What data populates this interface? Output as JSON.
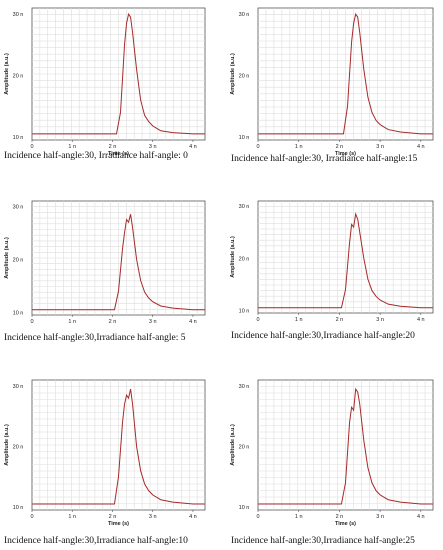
{
  "chart_data": [
    {
      "type": "line",
      "caption": "Incidence half-angle:30, Irradiance half-angle: 0",
      "xlabel": "Time (s)",
      "ylabel": "Amplitude (a.u.)",
      "x_ticks": [
        "0",
        "1 n",
        "2 n",
        "3 n",
        "4 n"
      ],
      "y_ticks": [
        "10 n",
        "20 n",
        "30 n"
      ],
      "xlim": [
        0,
        4.3
      ],
      "ylim": [
        9.5,
        31
      ],
      "series": [
        {
          "color": "#a52a2a",
          "x": [
            0,
            2.1,
            2.2,
            2.3,
            2.35,
            2.4,
            2.45,
            2.5,
            2.6,
            2.7,
            2.8,
            2.9,
            3.0,
            3.2,
            3.5,
            4.0,
            4.3
          ],
          "y": [
            10.5,
            10.5,
            14,
            25,
            28.5,
            30,
            29.5,
            27,
            21,
            16,
            13.5,
            12.5,
            11.8,
            11,
            10.7,
            10.5,
            10.5
          ]
        }
      ]
    },
    {
      "type": "line",
      "caption": "Incidence half-angle:30, Irradiance half-angle:15",
      "xlabel": "Time (s)",
      "ylabel": "Amplitude (a.u.)",
      "x_ticks": [
        "0",
        "1 n",
        "2 n",
        "3 n",
        "4 n"
      ],
      "y_ticks": [
        "10 n",
        "20 n",
        "30 n"
      ],
      "xlim": [
        0,
        4.3
      ],
      "ylim": [
        9.5,
        31
      ],
      "series": [
        {
          "color": "#a52a2a",
          "x": [
            0,
            2.1,
            2.2,
            2.3,
            2.35,
            2.4,
            2.45,
            2.5,
            2.6,
            2.7,
            2.8,
            2.9,
            3.0,
            3.2,
            3.5,
            4.0,
            4.3
          ],
          "y": [
            10.5,
            10.5,
            15,
            25.5,
            28.5,
            30,
            29.5,
            27,
            21,
            16.5,
            14,
            12.7,
            12,
            11.2,
            10.8,
            10.5,
            10.5
          ]
        }
      ]
    },
    {
      "type": "line",
      "caption": "Incidence half-angle:30,Irradiance half-angle: 5",
      "xlabel": "",
      "ylabel": "Amplitude (a.u.)",
      "x_ticks": [
        "0",
        "1 n",
        "2 n",
        "3 n",
        "4 n"
      ],
      "y_ticks": [
        "10 n",
        "20 n",
        "30 n"
      ],
      "xlim": [
        0,
        4.3
      ],
      "ylim": [
        9.5,
        31
      ],
      "series": [
        {
          "color": "#a52a2a",
          "x": [
            0,
            2.05,
            2.15,
            2.25,
            2.3,
            2.35,
            2.4,
            2.45,
            2.5,
            2.55,
            2.6,
            2.7,
            2.8,
            2.9,
            3.0,
            3.2,
            3.5,
            4.0,
            4.3
          ],
          "y": [
            10.5,
            10.5,
            14,
            22,
            25,
            27.5,
            27,
            28.5,
            26,
            23,
            20,
            16,
            13.8,
            12.7,
            12,
            11.2,
            10.8,
            10.5,
            10.5
          ]
        }
      ]
    },
    {
      "type": "line",
      "caption": "Incidence half-angle:30,Irradiance half-angle:20",
      "xlabel": "",
      "ylabel": "Amplitude (a.u.)",
      "x_ticks": [
        "0",
        "1 n",
        "2 n",
        "3 n",
        "4 n"
      ],
      "y_ticks": [
        "10 n",
        "20 n",
        "30 n"
      ],
      "xlim": [
        0,
        4.3
      ],
      "ylim": [
        9.5,
        31
      ],
      "series": [
        {
          "color": "#a52a2a",
          "x": [
            0,
            2.05,
            2.15,
            2.25,
            2.3,
            2.35,
            2.4,
            2.45,
            2.5,
            2.6,
            2.7,
            2.8,
            2.9,
            3.0,
            3.2,
            3.5,
            4.0,
            4.3
          ],
          "y": [
            10.5,
            10.5,
            14,
            23,
            26.5,
            26,
            28.5,
            27.5,
            25,
            20,
            16,
            13.8,
            12.7,
            12,
            11.2,
            10.8,
            10.5,
            10.5
          ]
        }
      ]
    },
    {
      "type": "line",
      "caption": "Incidence half-angle:30,Irradiance half-angle:10",
      "xlabel": "Time (s)",
      "ylabel": "Amplitude (a.u.)",
      "x_ticks": [
        "0",
        "1 n",
        "2 n",
        "3 n",
        "4 n"
      ],
      "y_ticks": [
        "10 n",
        "20 n",
        "30 n"
      ],
      "xlim": [
        0,
        4.3
      ],
      "ylim": [
        9.5,
        31
      ],
      "series": [
        {
          "color": "#a52a2a",
          "x": [
            0,
            2.05,
            2.15,
            2.25,
            2.3,
            2.35,
            2.4,
            2.45,
            2.5,
            2.55,
            2.6,
            2.7,
            2.8,
            2.9,
            3.0,
            3.2,
            3.5,
            4.0,
            4.3
          ],
          "y": [
            10.5,
            10.5,
            15,
            24,
            27,
            28.5,
            28,
            29.5,
            27,
            23.5,
            20,
            16,
            13.8,
            12.7,
            12,
            11.2,
            10.8,
            10.5,
            10.5
          ]
        }
      ]
    },
    {
      "type": "line",
      "caption": "Incidence half-angle:30,Irradiance half-angle:25",
      "xlabel": "Time (s)",
      "ylabel": "Amplitude (a.u.)",
      "x_ticks": [
        "0",
        "1 n",
        "2 n",
        "3 n",
        "4 n"
      ],
      "y_ticks": [
        "10 n",
        "20 n",
        "30 n"
      ],
      "xlim": [
        0,
        4.3
      ],
      "ylim": [
        9.5,
        31
      ],
      "series": [
        {
          "color": "#a52a2a",
          "x": [
            0,
            2.05,
            2.15,
            2.25,
            2.3,
            2.35,
            2.4,
            2.45,
            2.5,
            2.6,
            2.7,
            2.8,
            2.9,
            3.0,
            3.2,
            3.5,
            4.0,
            4.3
          ],
          "y": [
            10.5,
            10.5,
            14,
            24,
            26.5,
            26,
            29.5,
            29,
            27,
            21,
            16.5,
            14,
            12.7,
            12,
            11.2,
            10.8,
            10.5,
            10.5
          ]
        }
      ]
    }
  ]
}
